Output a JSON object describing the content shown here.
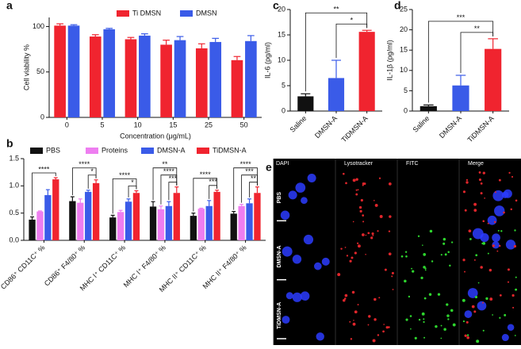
{
  "chart_data": [
    {
      "type": "bar",
      "panel_label": "a",
      "y_label": "Cell viability %",
      "x_label": "Concentration (μg/mL)",
      "categories": [
        "0",
        "5",
        "10",
        "15",
        "25",
        "50"
      ],
      "series": [
        {
          "name": "Ti DMSN",
          "color": "#f0242f",
          "values": [
            101,
            89,
            86,
            80,
            76,
            63
          ],
          "errors": [
            2,
            2,
            2,
            5,
            5,
            4
          ]
        },
        {
          "name": "DMSN",
          "color": "#3a5be8",
          "values": [
            101,
            97,
            90,
            85,
            83,
            84
          ],
          "errors": [
            1,
            1,
            2,
            4,
            4,
            6
          ]
        }
      ],
      "ylim": [
        0,
        110
      ],
      "yticks": [
        0,
        50,
        100
      ]
    },
    {
      "type": "bar",
      "panel_label": "b",
      "categories": [
        "CD86⁺ CD11C⁺ %",
        "CD86⁺ F4/80⁺ %",
        "MHC I⁺ CD11C⁺ %",
        "MHC I⁺ F4/80⁺ %",
        "MHC II⁺ CD11C⁺ %",
        "MHC II⁺ F4/80⁺ %"
      ],
      "series": [
        {
          "name": "PBS",
          "color": "#111111",
          "values": [
            0.38,
            0.72,
            0.42,
            0.62,
            0.45,
            0.49
          ],
          "errors": [
            0.05,
            0.08,
            0.04,
            0.09,
            0.05,
            0.04
          ]
        },
        {
          "name": "Proteins",
          "color": "#ee7ef0",
          "values": [
            0.53,
            0.69,
            0.52,
            0.57,
            0.58,
            0.63
          ],
          "errors": [
            0.01,
            0.07,
            0.03,
            0.06,
            0.01,
            0.03
          ]
        },
        {
          "name": "DMSN-A",
          "color": "#3a5be8",
          "values": [
            0.83,
            0.89,
            0.71,
            0.63,
            0.63,
            0.68
          ],
          "errors": [
            0.1,
            0.03,
            0.05,
            0.08,
            0.1,
            0.08
          ]
        },
        {
          "name": "TiDMSN-A",
          "color": "#f0242f",
          "values": [
            1.12,
            1.05,
            0.87,
            0.87,
            0.89,
            0.87
          ],
          "errors": [
            0.03,
            0.06,
            0.04,
            0.11,
            0.03,
            0.11
          ]
        }
      ],
      "significance": [
        [
          "****"
        ],
        [
          "****",
          "*"
        ],
        [
          "****",
          "*"
        ],
        [
          "**",
          "****",
          "***"
        ],
        [
          "****",
          "***"
        ],
        [
          "****",
          "***",
          "**"
        ]
      ],
      "ylim": [
        0,
        1.5
      ],
      "yticks": [
        {
          "value": 0,
          "label": "0.0"
        },
        {
          "value": 0.5,
          "label": "0.5"
        },
        {
          "value": 1,
          "label": "1.0"
        },
        {
          "value": 1.5,
          "label": "1.5"
        }
      ]
    },
    {
      "type": "bar",
      "panel_label": "c",
      "y_label": "IL-6 (pg/ml)",
      "categories": [
        "Saline",
        "DMSN-A",
        "TiDMSN-A"
      ],
      "values": [
        2.9,
        6.5,
        15.6
      ],
      "errors": [
        0.5,
        3.5,
        0.3
      ],
      "colors": [
        "#111111",
        "#3a5be8",
        "#f0242f"
      ],
      "annotations": [
        "**",
        "*"
      ],
      "ylim": [
        0,
        20
      ],
      "yticks": [
        0,
        5,
        10,
        15,
        20
      ]
    },
    {
      "type": "bar",
      "panel_label": "d",
      "y_label": "IL-1β (pg/ml)",
      "categories": [
        "Saline",
        "DMSN-A",
        "TiDMSN-A"
      ],
      "values": [
        1.2,
        6.3,
        15.3
      ],
      "errors": [
        0.3,
        2.5,
        2.5
      ],
      "colors": [
        "#111111",
        "#3a5be8",
        "#f0242f"
      ],
      "annotations": [
        "***",
        "**"
      ],
      "ylim": [
        0,
        25
      ],
      "yticks": [
        0,
        5,
        10,
        15,
        20,
        25
      ]
    }
  ],
  "image_panel": {
    "label": "e",
    "columns": [
      "DAPI",
      "Lysotracker",
      "FITC",
      "Merge"
    ],
    "rows": [
      "PBS",
      "DMSN-A",
      "TiDMSN-A"
    ]
  }
}
